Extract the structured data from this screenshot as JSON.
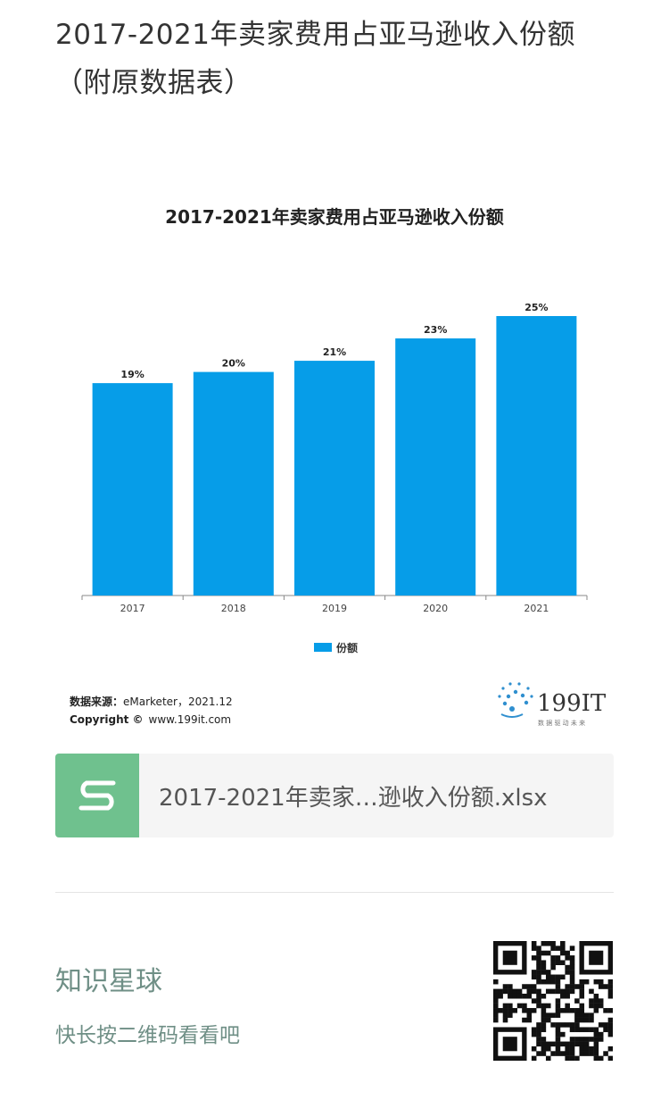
{
  "page": {
    "title": "2017-2021年卖家费用占亚马逊收入份额（附原数据表）"
  },
  "chart_data": {
    "type": "bar",
    "title": "2017-2021年卖家费用占亚马逊收入份额",
    "categories": [
      "2017",
      "2018",
      "2019",
      "2020",
      "2021"
    ],
    "series": [
      {
        "name": "份额",
        "values": [
          19,
          20,
          21,
          23,
          25
        ],
        "labels": [
          "19%",
          "20%",
          "21%",
          "23%",
          "25%"
        ]
      }
    ],
    "xlabel": "",
    "ylabel": "",
    "ylim": [
      0,
      25
    ],
    "grid": false,
    "legend": "bottom-center",
    "bar_color": "#069de8"
  },
  "source": {
    "label": "数据来源：",
    "value": "eMarketer，2021.12",
    "copyright_label": "Copyright ©",
    "copyright_value": "www.199it.com"
  },
  "logo": {
    "text": "199IT",
    "tagline": "数 据 驱 动 未 来"
  },
  "file": {
    "icon": "spreadsheet-s-icon",
    "name": "2017-2021年卖家…逊收入份额.xlsx"
  },
  "planet": {
    "title": "知识星球",
    "subtitle": "快长按二维码看看吧"
  },
  "colors": {
    "accent": "#069de8",
    "file_icon_bg": "#6fc18e",
    "planet_text": "#6f8f86"
  }
}
